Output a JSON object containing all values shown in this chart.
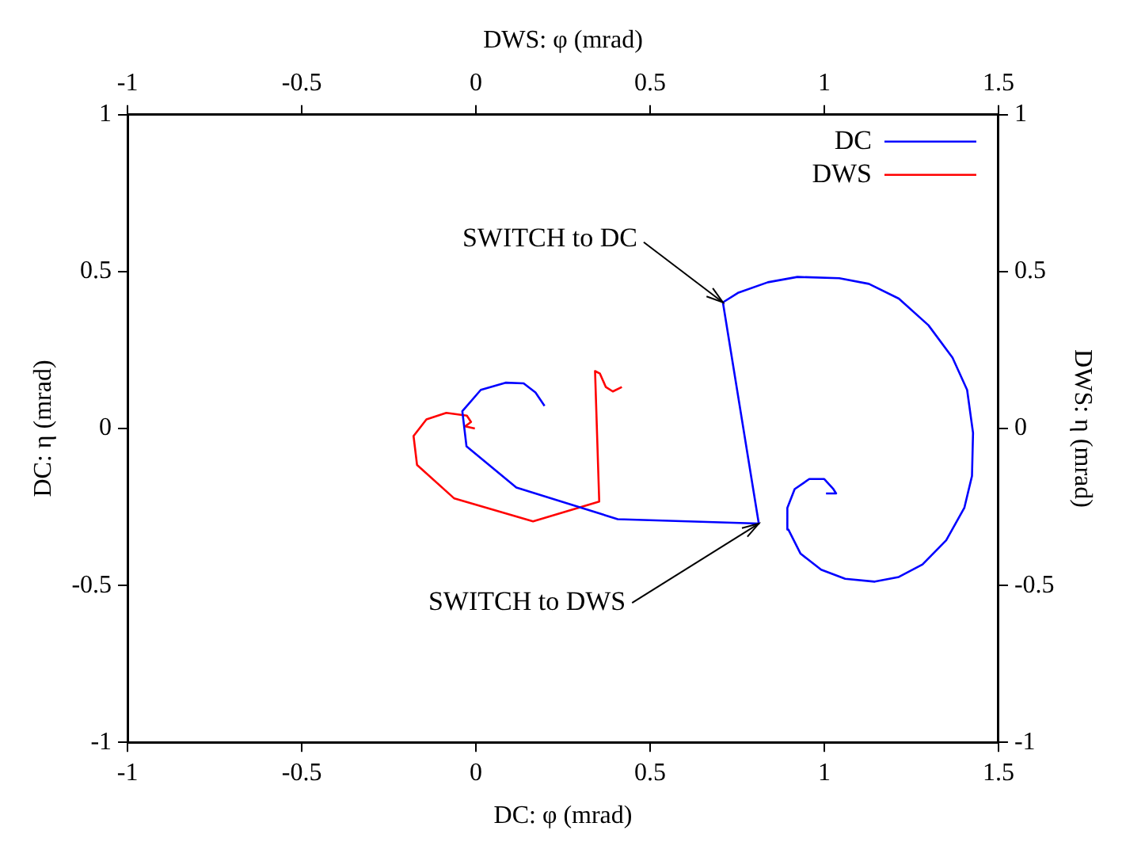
{
  "chart_data": {
    "type": "line",
    "xlabel": "DC: φ (mrad)",
    "x2label": "DWS: φ (mrad)",
    "ylabel": "DC: η (mrad)",
    "y2label": "DWS: η (mrad)",
    "xlim": [
      -1,
      1.5
    ],
    "xticks": [
      -1,
      -0.5,
      0,
      0.5,
      1,
      1.5
    ],
    "x2lim": [
      -1,
      1.5
    ],
    "x2ticks": [
      -1,
      -0.5,
      0,
      0.5,
      1,
      1.5
    ],
    "ylim": [
      -1,
      1
    ],
    "yticks": [
      -1,
      -0.5,
      0,
      0.5,
      1
    ],
    "y2lim": [
      -1,
      1
    ],
    "y2ticks": [
      -1,
      -0.5,
      0,
      0.5,
      1
    ],
    "grid": false,
    "legend": "top right",
    "marker": "none",
    "line_style": "solid",
    "series": [
      {
        "name": "DC",
        "color": "#0000ff",
        "x": [
          0.197,
          0.171,
          0.137,
          0.085,
          0.014,
          -0.039,
          -0.027,
          0.116,
          0.407,
          0.812,
          0.709,
          0.752,
          0.838,
          0.923,
          1.043,
          1.128,
          1.214,
          1.299,
          1.368,
          1.41,
          1.427,
          1.424,
          1.402,
          1.35,
          1.282,
          1.214,
          1.145,
          1.06,
          0.991,
          0.932,
          0.897,
          0.894,
          0.915,
          0.957,
          1.0,
          1.026,
          1.034,
          1.005
        ],
        "values": [
          0.072,
          0.115,
          0.144,
          0.146,
          0.123,
          0.055,
          -0.057,
          -0.188,
          -0.289,
          -0.303,
          0.402,
          0.432,
          0.466,
          0.483,
          0.479,
          0.461,
          0.414,
          0.329,
          0.226,
          0.123,
          -0.014,
          -0.151,
          -0.253,
          -0.356,
          -0.433,
          -0.473,
          -0.488,
          -0.479,
          -0.45,
          -0.399,
          -0.322,
          -0.253,
          -0.193,
          -0.161,
          -0.161,
          -0.193,
          -0.207,
          -0.207
        ]
      },
      {
        "name": "DWS",
        "color": "#ff0000",
        "axis": "y2",
        "x": [
          -0.003,
          -0.031,
          -0.014,
          -0.026,
          -0.085,
          -0.142,
          -0.179,
          -0.169,
          -0.062,
          0.164,
          0.354,
          0.342,
          0.356,
          0.373,
          0.393,
          0.419
        ],
        "values": [
          0.0,
          0.007,
          0.021,
          0.041,
          0.05,
          0.029,
          -0.024,
          -0.116,
          -0.223,
          -0.296,
          -0.233,
          0.183,
          0.175,
          0.132,
          0.118,
          0.132
        ]
      }
    ],
    "annotations": [
      {
        "text": "SWITCH to DC",
        "x": 0.709,
        "y": 0.402
      },
      {
        "text": "SWITCH to DWS",
        "x": 0.812,
        "y": -0.303
      }
    ]
  }
}
